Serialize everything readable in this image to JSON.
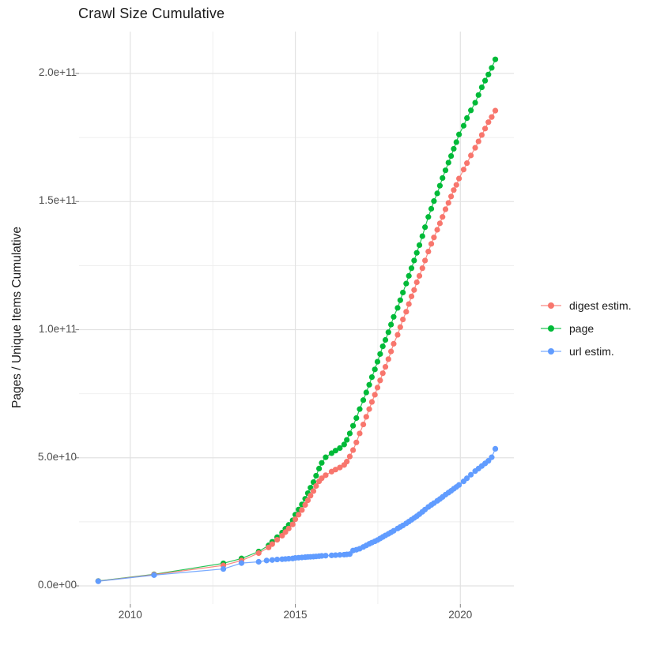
{
  "chart_data": {
    "type": "line",
    "title": "Crawl Size Cumulative",
    "xlabel": "",
    "ylabel": "Pages / Unique Items Cumulative",
    "background": "#ffffff",
    "grid": true,
    "grid_major_color": "#e2e2e2",
    "grid_minor_color": "#ededed",
    "tick_color": "#4d4d4d",
    "legend_position": "right",
    "values_unit": "1e9",
    "xlim": [
      2008.45,
      2021.62
    ],
    "ylim_e9": [
      -7.1,
      216.4
    ],
    "x_ticks": [
      {
        "value": 2010,
        "label": "2010"
      },
      {
        "value": 2015,
        "label": "2015"
      },
      {
        "value": 2020,
        "label": "2020"
      }
    ],
    "x_minor": [
      2012.5,
      2017.5
    ],
    "y_ticks": [
      {
        "value_e9": 0,
        "label": "0.0e+00"
      },
      {
        "value_e9": 50,
        "label": "5.0e+10"
      },
      {
        "value_e9": 100,
        "label": "1.0e+11"
      },
      {
        "value_e9": 150,
        "label": "1.5e+11"
      },
      {
        "value_e9": 200,
        "label": "2.0e+11"
      }
    ],
    "y_minor_e9": [
      25,
      75,
      125,
      175
    ],
    "draw_order": [
      1,
      0,
      2
    ],
    "series": [
      {
        "name": "digest estim.",
        "color": "#F8766D",
        "points": [
          [
            2009.03,
            1.85
          ],
          [
            2010.72,
            4.4
          ],
          [
            2012.82,
            8.0
          ],
          [
            2013.37,
            9.9
          ],
          [
            2013.89,
            12.8
          ],
          [
            2014.19,
            15.0
          ],
          [
            2014.3,
            16.3
          ],
          [
            2014.45,
            18.0
          ],
          [
            2014.6,
            19.6
          ],
          [
            2014.7,
            21.0
          ],
          [
            2014.8,
            22.4
          ],
          [
            2014.92,
            24.0
          ],
          [
            2015.0,
            26.0
          ],
          [
            2015.1,
            27.8
          ],
          [
            2015.2,
            29.6
          ],
          [
            2015.3,
            31.6
          ],
          [
            2015.38,
            33.4
          ],
          [
            2015.46,
            35.2
          ],
          [
            2015.55,
            37.0
          ],
          [
            2015.63,
            39.0
          ],
          [
            2015.72,
            40.8
          ],
          [
            2015.8,
            42.0
          ],
          [
            2015.92,
            43.2
          ],
          [
            2016.1,
            44.6
          ],
          [
            2016.22,
            45.4
          ],
          [
            2016.35,
            46.2
          ],
          [
            2016.48,
            47.2
          ],
          [
            2016.56,
            48.5
          ],
          [
            2016.65,
            50.5
          ],
          [
            2016.75,
            53.0
          ],
          [
            2016.85,
            56.0
          ],
          [
            2016.95,
            59.5
          ],
          [
            2017.06,
            63.0
          ],
          [
            2017.15,
            66.0
          ],
          [
            2017.24,
            69.0
          ],
          [
            2017.32,
            71.8
          ],
          [
            2017.41,
            74.6
          ],
          [
            2017.49,
            77.4
          ],
          [
            2017.57,
            80.2
          ],
          [
            2017.65,
            83.0
          ],
          [
            2017.73,
            85.5
          ],
          [
            2017.82,
            88.5
          ],
          [
            2017.9,
            91.5
          ],
          [
            2017.98,
            94.5
          ],
          [
            2018.1,
            98.0
          ],
          [
            2018.18,
            101.0
          ],
          [
            2018.26,
            104.0
          ],
          [
            2018.36,
            107.0
          ],
          [
            2018.44,
            110.0
          ],
          [
            2018.52,
            113.0
          ],
          [
            2018.6,
            115.5
          ],
          [
            2018.68,
            118.5
          ],
          [
            2018.76,
            121.0
          ],
          [
            2018.85,
            124.0
          ],
          [
            2018.93,
            127.0
          ],
          [
            2019.03,
            130.5
          ],
          [
            2019.12,
            133.5
          ],
          [
            2019.2,
            136.0
          ],
          [
            2019.3,
            139.0
          ],
          [
            2019.38,
            141.5
          ],
          [
            2019.46,
            144.0
          ],
          [
            2019.55,
            147.0
          ],
          [
            2019.64,
            149.5
          ],
          [
            2019.72,
            152.0
          ],
          [
            2019.8,
            154.5
          ],
          [
            2019.88,
            156.5
          ],
          [
            2019.96,
            159.0
          ],
          [
            2020.1,
            162.5
          ],
          [
            2020.2,
            165.0
          ],
          [
            2020.32,
            168.0
          ],
          [
            2020.45,
            171.0
          ],
          [
            2020.55,
            173.5
          ],
          [
            2020.65,
            176.0
          ],
          [
            2020.75,
            178.5
          ],
          [
            2020.85,
            181.0
          ],
          [
            2020.95,
            183.0
          ],
          [
            2021.06,
            185.5
          ]
        ]
      },
      {
        "name": "page",
        "color": "#00BA38",
        "points": [
          [
            2009.03,
            1.9
          ],
          [
            2010.72,
            4.5
          ],
          [
            2012.82,
            8.8
          ],
          [
            2013.37,
            10.7
          ],
          [
            2013.89,
            13.4
          ],
          [
            2014.19,
            15.8
          ],
          [
            2014.3,
            17.2
          ],
          [
            2014.45,
            19.0
          ],
          [
            2014.6,
            20.8
          ],
          [
            2014.7,
            22.3
          ],
          [
            2014.8,
            23.8
          ],
          [
            2014.92,
            25.6
          ],
          [
            2015.0,
            27.8
          ],
          [
            2015.1,
            29.8
          ],
          [
            2015.2,
            31.8
          ],
          [
            2015.3,
            34.0
          ],
          [
            2015.38,
            36.2
          ],
          [
            2015.46,
            38.3
          ],
          [
            2015.55,
            40.5
          ],
          [
            2015.63,
            43.0
          ],
          [
            2015.72,
            45.8
          ],
          [
            2015.8,
            48.0
          ],
          [
            2015.92,
            50.2
          ],
          [
            2016.1,
            51.8
          ],
          [
            2016.22,
            52.8
          ],
          [
            2016.35,
            53.8
          ],
          [
            2016.48,
            55.2
          ],
          [
            2016.56,
            57.0
          ],
          [
            2016.65,
            59.5
          ],
          [
            2016.75,
            62.5
          ],
          [
            2016.85,
            65.5
          ],
          [
            2016.95,
            69.0
          ],
          [
            2017.06,
            72.5
          ],
          [
            2017.15,
            75.5
          ],
          [
            2017.24,
            78.5
          ],
          [
            2017.32,
            81.5
          ],
          [
            2017.41,
            84.5
          ],
          [
            2017.49,
            87.5
          ],
          [
            2017.57,
            90.5
          ],
          [
            2017.65,
            93.5
          ],
          [
            2017.73,
            96.0
          ],
          [
            2017.82,
            99.0
          ],
          [
            2017.9,
            102.0
          ],
          [
            2017.98,
            105.0
          ],
          [
            2018.1,
            108.5
          ],
          [
            2018.18,
            111.5
          ],
          [
            2018.26,
            114.5
          ],
          [
            2018.36,
            118.0
          ],
          [
            2018.44,
            121.0
          ],
          [
            2018.52,
            124.0
          ],
          [
            2018.6,
            127.0
          ],
          [
            2018.68,
            130.0
          ],
          [
            2018.76,
            133.0
          ],
          [
            2018.85,
            136.5
          ],
          [
            2018.93,
            140.0
          ],
          [
            2019.03,
            144.0
          ],
          [
            2019.12,
            147.2
          ],
          [
            2019.2,
            150.2
          ],
          [
            2019.3,
            153.2
          ],
          [
            2019.38,
            156.2
          ],
          [
            2019.46,
            159.2
          ],
          [
            2019.55,
            162.2
          ],
          [
            2019.64,
            165.2
          ],
          [
            2019.72,
            167.8
          ],
          [
            2019.8,
            170.6
          ],
          [
            2019.88,
            173.2
          ],
          [
            2019.96,
            176.2
          ],
          [
            2020.1,
            179.6
          ],
          [
            2020.2,
            182.6
          ],
          [
            2020.32,
            185.6
          ],
          [
            2020.45,
            188.6
          ],
          [
            2020.55,
            191.6
          ],
          [
            2020.65,
            194.6
          ],
          [
            2020.75,
            197.2
          ],
          [
            2020.85,
            199.6
          ],
          [
            2020.95,
            202.2
          ],
          [
            2021.06,
            205.5
          ]
        ]
      },
      {
        "name": "url estim.",
        "color": "#619CFF",
        "points": [
          [
            2009.03,
            1.8
          ],
          [
            2010.72,
            4.2
          ],
          [
            2012.82,
            6.6
          ],
          [
            2013.37,
            8.9
          ],
          [
            2013.89,
            9.4
          ],
          [
            2014.13,
            9.9
          ],
          [
            2014.3,
            10.1
          ],
          [
            2014.45,
            10.3
          ],
          [
            2014.6,
            10.4
          ],
          [
            2014.7,
            10.5
          ],
          [
            2014.8,
            10.6
          ],
          [
            2014.92,
            10.7
          ],
          [
            2015.0,
            10.9
          ],
          [
            2015.1,
            11.0
          ],
          [
            2015.2,
            11.1
          ],
          [
            2015.3,
            11.2
          ],
          [
            2015.38,
            11.3
          ],
          [
            2015.46,
            11.35
          ],
          [
            2015.55,
            11.4
          ],
          [
            2015.63,
            11.5
          ],
          [
            2015.72,
            11.6
          ],
          [
            2015.8,
            11.7
          ],
          [
            2015.92,
            11.8
          ],
          [
            2016.1,
            11.9
          ],
          [
            2016.22,
            12.0
          ],
          [
            2016.35,
            12.1
          ],
          [
            2016.48,
            12.2
          ],
          [
            2016.56,
            12.3
          ],
          [
            2016.65,
            12.4
          ],
          [
            2016.75,
            13.8
          ],
          [
            2016.85,
            14.1
          ],
          [
            2016.95,
            14.5
          ],
          [
            2017.06,
            15.2
          ],
          [
            2017.15,
            15.8
          ],
          [
            2017.24,
            16.4
          ],
          [
            2017.32,
            16.9
          ],
          [
            2017.41,
            17.4
          ],
          [
            2017.49,
            17.9
          ],
          [
            2017.57,
            18.5
          ],
          [
            2017.65,
            19.1
          ],
          [
            2017.73,
            19.7
          ],
          [
            2017.82,
            20.3
          ],
          [
            2017.9,
            20.9
          ],
          [
            2017.98,
            21.5
          ],
          [
            2018.1,
            22.4
          ],
          [
            2018.18,
            23.0
          ],
          [
            2018.26,
            23.6
          ],
          [
            2018.36,
            24.4
          ],
          [
            2018.44,
            25.1
          ],
          [
            2018.52,
            25.8
          ],
          [
            2018.6,
            26.5
          ],
          [
            2018.68,
            27.2
          ],
          [
            2018.76,
            28.0
          ],
          [
            2018.85,
            28.9
          ],
          [
            2018.93,
            29.8
          ],
          [
            2019.03,
            30.8
          ],
          [
            2019.12,
            31.6
          ],
          [
            2019.2,
            32.3
          ],
          [
            2019.3,
            33.2
          ],
          [
            2019.38,
            33.9
          ],
          [
            2019.46,
            34.7
          ],
          [
            2019.55,
            35.6
          ],
          [
            2019.64,
            36.4
          ],
          [
            2019.72,
            37.1
          ],
          [
            2019.8,
            37.9
          ],
          [
            2019.88,
            38.6
          ],
          [
            2019.96,
            39.4
          ],
          [
            2020.1,
            40.8
          ],
          [
            2020.2,
            42.0
          ],
          [
            2020.32,
            43.4
          ],
          [
            2020.45,
            44.8
          ],
          [
            2020.55,
            45.8
          ],
          [
            2020.65,
            46.8
          ],
          [
            2020.75,
            47.8
          ],
          [
            2020.85,
            48.8
          ],
          [
            2020.95,
            50.2
          ],
          [
            2021.06,
            53.5
          ]
        ]
      }
    ]
  }
}
